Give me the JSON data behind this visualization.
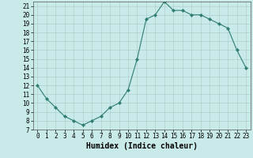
{
  "x": [
    0,
    1,
    2,
    3,
    4,
    5,
    6,
    7,
    8,
    9,
    10,
    11,
    12,
    13,
    14,
    15,
    16,
    17,
    18,
    19,
    20,
    21,
    22,
    23
  ],
  "y": [
    12,
    10.5,
    9.5,
    8.5,
    8,
    7.5,
    8,
    8.5,
    9.5,
    10,
    11.5,
    15,
    19.5,
    20,
    21.5,
    20.5,
    20.5,
    20,
    20,
    19.5,
    19,
    18.5,
    16,
    14
  ],
  "line_color": "#2e7d6e",
  "marker": "D",
  "marker_size": 2.2,
  "bg_color": "#c8eae8",
  "grid_color": "#b0d0ce",
  "xlabel": "Humidex (Indice chaleur)",
  "xlim": [
    -0.5,
    23.5
  ],
  "ylim": [
    7,
    21.5
  ],
  "yticks": [
    7,
    8,
    9,
    10,
    11,
    12,
    13,
    14,
    15,
    16,
    17,
    18,
    19,
    20,
    21
  ],
  "xticks": [
    0,
    1,
    2,
    3,
    4,
    5,
    6,
    7,
    8,
    9,
    10,
    11,
    12,
    13,
    14,
    15,
    16,
    17,
    18,
    19,
    20,
    21,
    22,
    23
  ],
  "tick_fontsize": 5.5,
  "xlabel_fontsize": 7.0,
  "linewidth": 0.8
}
